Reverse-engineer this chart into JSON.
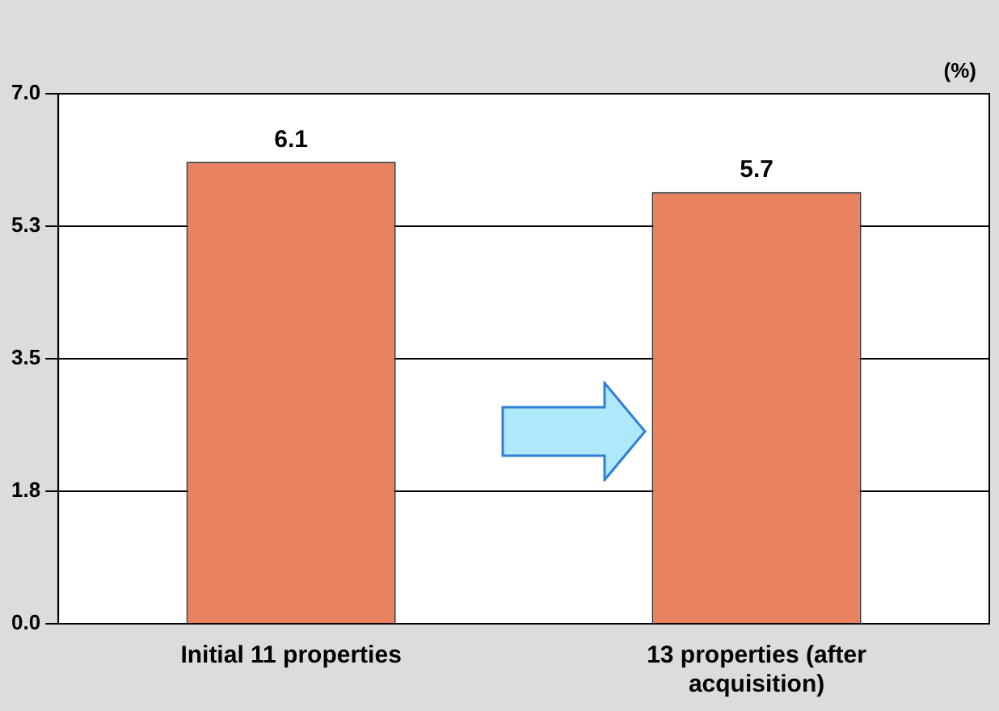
{
  "chart_data": {
    "type": "bar",
    "ylabel": "(%)",
    "categories": [
      "Initial 11 properties",
      "13 properties (after acquisition)"
    ],
    "values": [
      6.1,
      5.7
    ],
    "color": "#e9825e",
    "ylim": [
      0,
      7
    ],
    "yticks": [
      {
        "value": 0,
        "label": "0.0"
      },
      {
        "value": 1.75,
        "label": "1.8"
      },
      {
        "value": 3.5,
        "label": "3.5"
      },
      {
        "value": 5.25,
        "label": "5.3"
      },
      {
        "value": 7,
        "label": "7.0"
      }
    ],
    "grid": "y",
    "data_labels": true,
    "legend": false
  }
}
